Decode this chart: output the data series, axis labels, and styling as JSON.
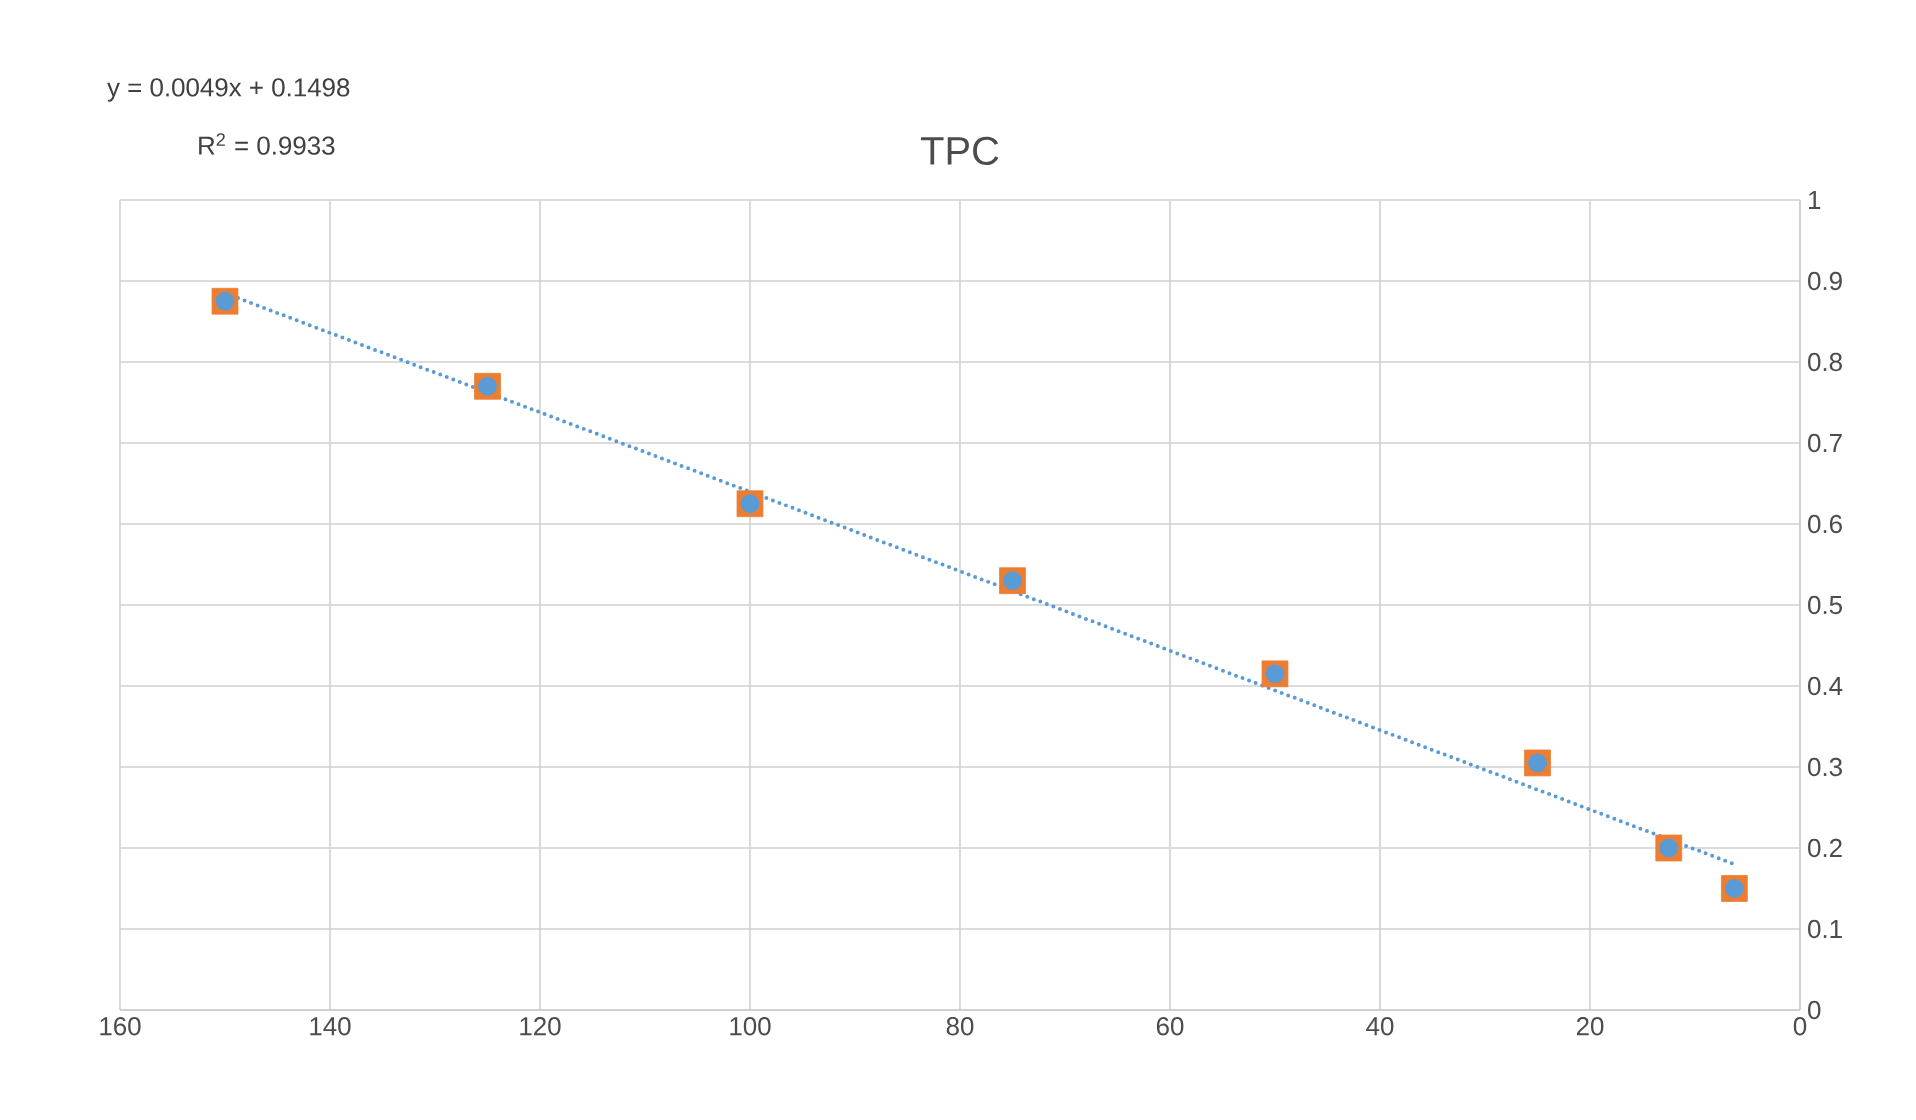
{
  "chart_data": {
    "type": "scatter",
    "title": "TPC",
    "annotations": [
      "y = 0.0049x + 0.1498",
      "R$^{2}$ = 0.9933"
    ],
    "xlim": [
      160,
      0
    ],
    "xticks": [
      160,
      140,
      120,
      100,
      80,
      60,
      40,
      20,
      0
    ],
    "ylim": [
      0,
      1
    ],
    "yticks": [
      0,
      0.1,
      0.2,
      0.3,
      0.4,
      0.5,
      0.6,
      0.7,
      0.8,
      0.9,
      1
    ],
    "grid": true,
    "series": [
      {
        "marker": "square",
        "color": "#ed7d31",
        "x": [
          150,
          125,
          100,
          75,
          50,
          25,
          12.5,
          6.25
        ],
        "values": [
          0.875,
          0.77,
          0.625,
          0.53,
          0.415,
          0.305,
          0.2,
          0.15
        ]
      },
      {
        "marker": "circle",
        "color": "#5b9bd5",
        "x": [
          150,
          125,
          100,
          75,
          50,
          25,
          12.5,
          6.25
        ],
        "values": [
          0.875,
          0.77,
          0.625,
          0.53,
          0.415,
          0.305,
          0.2,
          0.15
        ]
      },
      {
        "type": "line",
        "line_style": "dotted",
        "marker": "none",
        "color": "#5b9bd5",
        "x": [
          150,
          6.25
        ],
        "values": [
          0.885,
          0.18
        ]
      }
    ]
  }
}
